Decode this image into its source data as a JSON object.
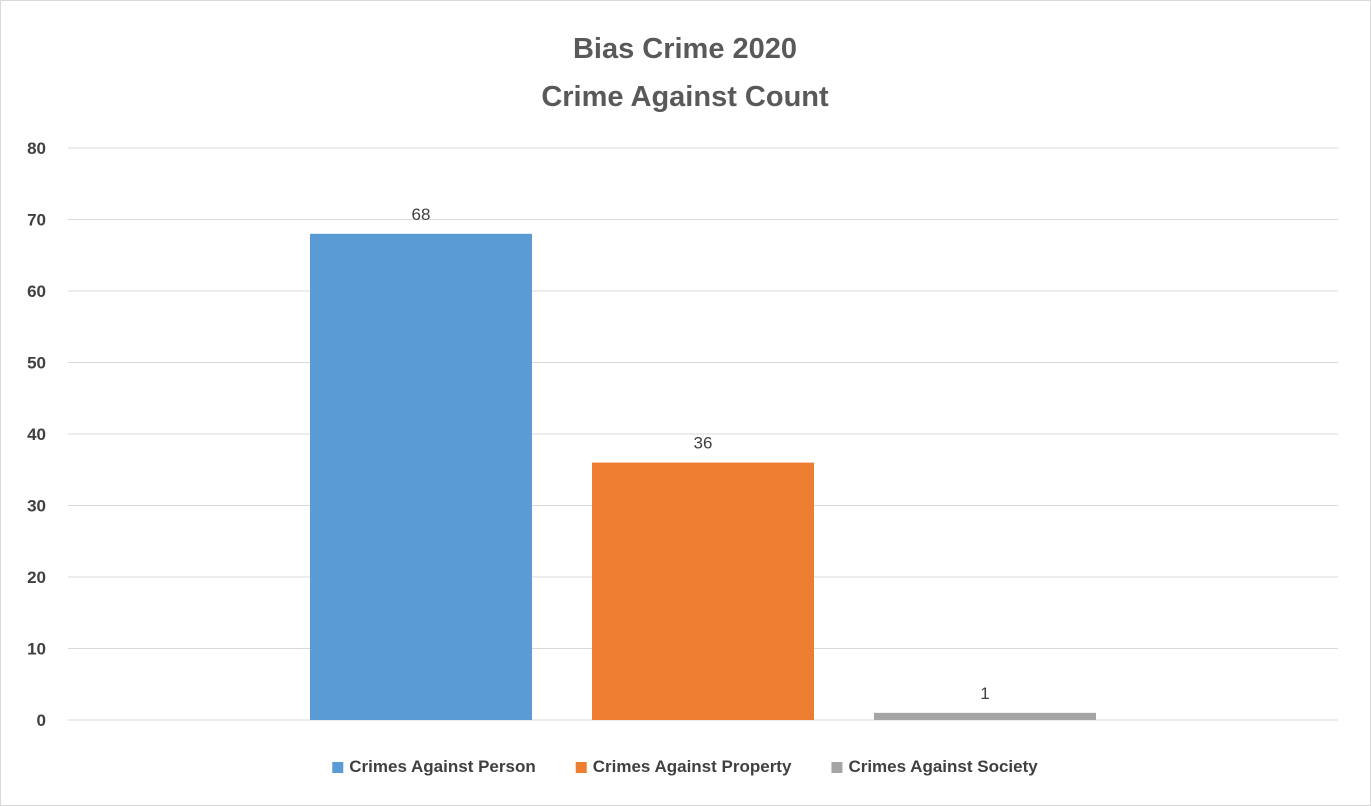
{
  "chart_data": {
    "type": "bar",
    "title_lines": [
      "Bias Crime 2020",
      "Crime Against Count"
    ],
    "xlabel": "",
    "ylabel": "",
    "ylim": [
      0,
      80
    ],
    "yticks": [
      0,
      10,
      20,
      30,
      40,
      50,
      60,
      70,
      80
    ],
    "grid": true,
    "legend_position": "bottom",
    "series": [
      {
        "name": "Crimes Against Person",
        "value": 68,
        "color": "#5b9bd5"
      },
      {
        "name": "Crimes Against Property",
        "value": 36,
        "color": "#ed7d31"
      },
      {
        "name": "Crimes Against Society",
        "value": 1,
        "color": "#a5a5a5"
      }
    ]
  }
}
